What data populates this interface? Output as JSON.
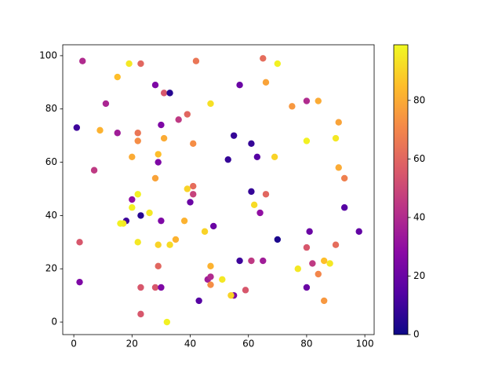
{
  "chart_data": {
    "type": "scatter",
    "x": [
      3,
      19,
      23,
      42,
      65,
      70,
      15,
      66,
      28,
      57,
      31,
      33,
      11,
      47,
      75,
      80,
      84,
      39,
      36,
      1,
      9,
      30,
      91,
      15,
      22,
      31,
      22,
      41,
      61,
      55,
      80,
      90,
      29,
      20,
      53,
      63,
      69,
      29,
      91,
      7,
      93,
      28,
      41,
      39,
      61,
      41,
      66,
      22,
      20,
      40,
      62,
      93,
      20,
      64,
      26,
      23,
      18,
      30,
      38,
      17,
      16,
      48,
      45,
      81,
      98,
      70,
      35,
      2,
      22,
      29,
      33,
      90,
      80,
      57,
      61,
      65,
      86,
      82,
      88,
      29,
      47,
      77,
      84,
      46,
      47,
      51,
      2,
      47,
      23,
      28,
      30,
      80,
      59,
      55,
      54,
      43,
      86,
      23,
      32
    ],
    "y": [
      98,
      97,
      97,
      98,
      99,
      97,
      92,
      90,
      89,
      89,
      86,
      86,
      82,
      82,
      81,
      83,
      83,
      78,
      76,
      73,
      72,
      74,
      75,
      71,
      71,
      69,
      68,
      67,
      67,
      70,
      68,
      69,
      63,
      62,
      61,
      62,
      62,
      60,
      58,
      57,
      54,
      54,
      51,
      50,
      49,
      48,
      48,
      48,
      46,
      45,
      44,
      43,
      43,
      41,
      41,
      40,
      38,
      38,
      38,
      37,
      37,
      36,
      34,
      34,
      34,
      31,
      31,
      30,
      30,
      29,
      29,
      29,
      28,
      23,
      23,
      23,
      23,
      22,
      22,
      21,
      21,
      20,
      18,
      16,
      17,
      16,
      15,
      14,
      13,
      13,
      13,
      13,
      12,
      10,
      10,
      8,
      8,
      3,
      0
    ],
    "c": [
      40,
      95,
      60,
      65,
      62,
      97,
      85,
      78,
      25,
      20,
      55,
      5,
      38,
      93,
      75,
      40,
      80,
      60,
      45,
      10,
      82,
      25,
      78,
      35,
      65,
      80,
      72,
      72,
      8,
      8,
      97,
      95,
      85,
      80,
      8,
      15,
      90,
      25,
      80,
      45,
      68,
      78,
      62,
      90,
      8,
      48,
      60,
      97,
      30,
      20,
      92,
      15,
      97,
      30,
      95,
      5,
      10,
      25,
      82,
      95,
      97,
      20,
      90,
      20,
      18,
      3,
      82,
      55,
      95,
      90,
      92,
      62,
      55,
      10,
      45,
      35,
      85,
      45,
      95,
      60,
      82,
      95,
      70,
      35,
      40,
      95,
      25,
      72,
      55,
      55,
      25,
      20,
      55,
      25,
      90,
      15,
      75,
      55,
      97
    ],
    "colormap": [
      "#0d0887",
      "#5302a3",
      "#8b0aa5",
      "#b83289",
      "#db5c68",
      "#f48849",
      "#febd2a",
      "#f0f921"
    ],
    "xlim": [
      -3.8,
      103.2
    ],
    "ylim": [
      -4.7,
      104.1
    ],
    "clim": [
      0,
      99
    ],
    "xticks": [
      0,
      20,
      40,
      60,
      80,
      100
    ],
    "yticks": [
      0,
      20,
      40,
      60,
      80,
      100
    ],
    "cticks": [
      0,
      20,
      40,
      60,
      80
    ]
  }
}
